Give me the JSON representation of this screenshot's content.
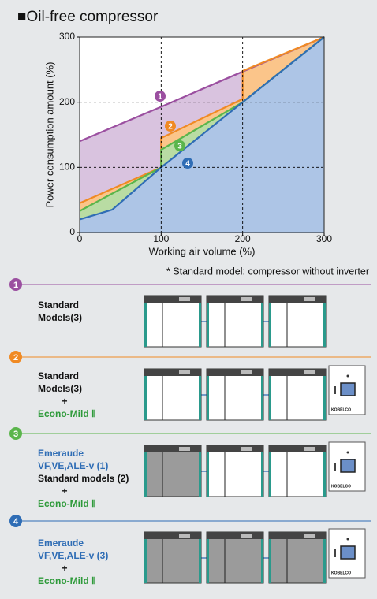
{
  "chart_data": {
    "type": "area",
    "title": "■Oil-free compressor",
    "xlabel": "Working air volume (%)",
    "ylabel": "Power consumption amount (%)",
    "xlim": [
      0,
      300
    ],
    "ylim": [
      0,
      300
    ],
    "xticks": [
      0,
      100,
      200,
      300
    ],
    "yticks": [
      0,
      100,
      200,
      300
    ],
    "grid": true,
    "series": [
      {
        "label": "1",
        "color": "#9b4fa0",
        "fill": "#d9c3df",
        "x": [
          0,
          100,
          200,
          300
        ],
        "values": [
          140,
          193,
          247,
          300
        ]
      },
      {
        "label": "2",
        "color": "#f08a24",
        "fill": "#fbc58a",
        "x": [
          0,
          100,
          100,
          200,
          200,
          300
        ],
        "values": [
          45,
          100,
          145,
          205,
          248,
          300
        ]
      },
      {
        "label": "3",
        "color": "#5ab54b",
        "fill": "#b9dca3",
        "x": [
          0,
          100,
          100,
          200,
          300
        ],
        "values": [
          33,
          100,
          127,
          200,
          300
        ]
      },
      {
        "label": "4",
        "color": "#2f6db5",
        "fill": "#adc5e6",
        "x": [
          0,
          40,
          100,
          200,
          300
        ],
        "values": [
          20,
          35,
          100,
          200,
          300
        ]
      }
    ]
  },
  "note": "* Standard model: compressor without inverter",
  "sections": [
    {
      "number": "1",
      "color": "#9b4fa0",
      "lines": [
        {
          "text": "Standard",
          "color": "#111111"
        },
        {
          "text": "Models(3)",
          "color": "#111111"
        }
      ]
    },
    {
      "number": "2",
      "color": "#f08a24",
      "lines": [
        {
          "text": "Standard",
          "color": "#111111"
        },
        {
          "text": "Models(3)",
          "color": "#111111"
        },
        {
          "text": "+",
          "color": "#111111"
        },
        {
          "text": "Econo-Mild Ⅱ",
          "color": "#2e9a3a"
        }
      ]
    },
    {
      "number": "3",
      "color": "#5ab54b",
      "lines": [
        {
          "text": "Emeraude",
          "color": "#2f6db5"
        },
        {
          "text": "VF,VE,ALE-v  (1)",
          "color": "#2f6db5"
        },
        {
          "text": "Standard models (2)",
          "color": "#111111"
        },
        {
          "text": "+",
          "color": "#111111"
        },
        {
          "text": "Econo-Mild Ⅱ",
          "color": "#2e9a3a"
        }
      ]
    },
    {
      "number": "4",
      "color": "#2f6db5",
      "lines": [
        {
          "text": "Emeraude",
          "color": "#2f6db5"
        },
        {
          "text": "VF,VE,ALE-v  (3)",
          "color": "#2f6db5"
        },
        {
          "text": "+",
          "color": "#111111"
        },
        {
          "text": "Econo-Mild Ⅱ",
          "color": "#2e9a3a"
        }
      ]
    }
  ],
  "econo_brand": "KOBELCO"
}
